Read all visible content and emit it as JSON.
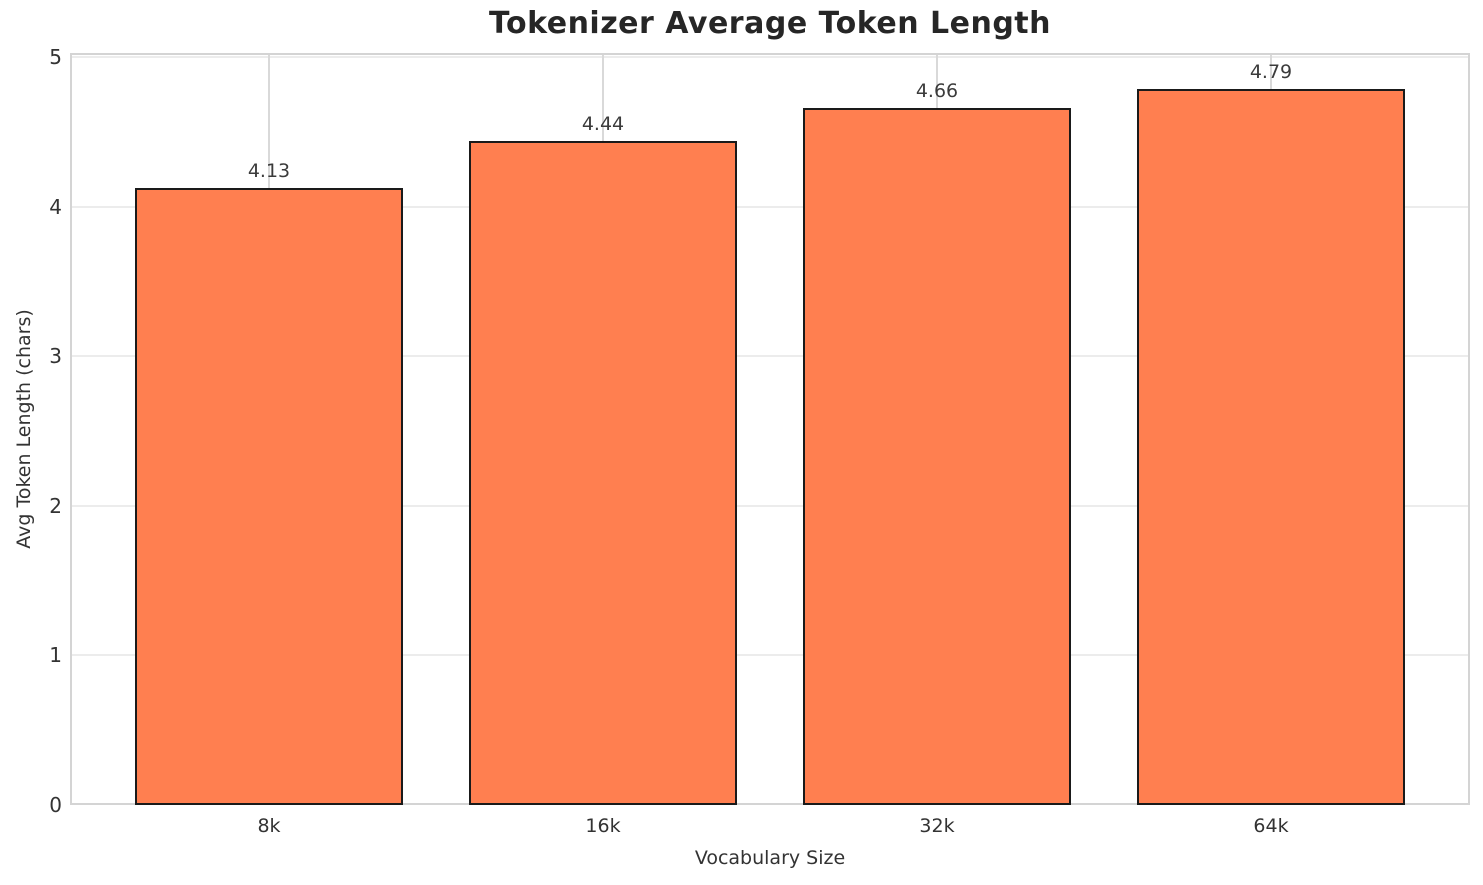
{
  "chart_data": {
    "type": "bar",
    "title": "Tokenizer Average Token Length",
    "xlabel": "Vocabulary Size",
    "ylabel": "Avg Token Length (chars)",
    "categories": [
      "8k",
      "16k",
      "32k",
      "64k"
    ],
    "values": [
      4.13,
      4.44,
      4.66,
      4.79
    ],
    "value_labels": [
      "4.13",
      "4.44",
      "4.66",
      "4.79"
    ],
    "yticks": [
      0,
      1,
      2,
      3,
      4,
      5
    ],
    "ylim": [
      0,
      5
    ],
    "grid": "on",
    "legend": "none",
    "colors": {
      "bar_fill": "#FF7F50",
      "bar_edge": "#1a1a1a",
      "grid_horizontal": "#ececec",
      "grid_vertical": "#d9d9d9",
      "spine": "#d4d4d4",
      "title_text": "#262626",
      "tick_text": "#333333",
      "value_label_text": "#3b3b3b",
      "background": "#ffffff"
    }
  }
}
